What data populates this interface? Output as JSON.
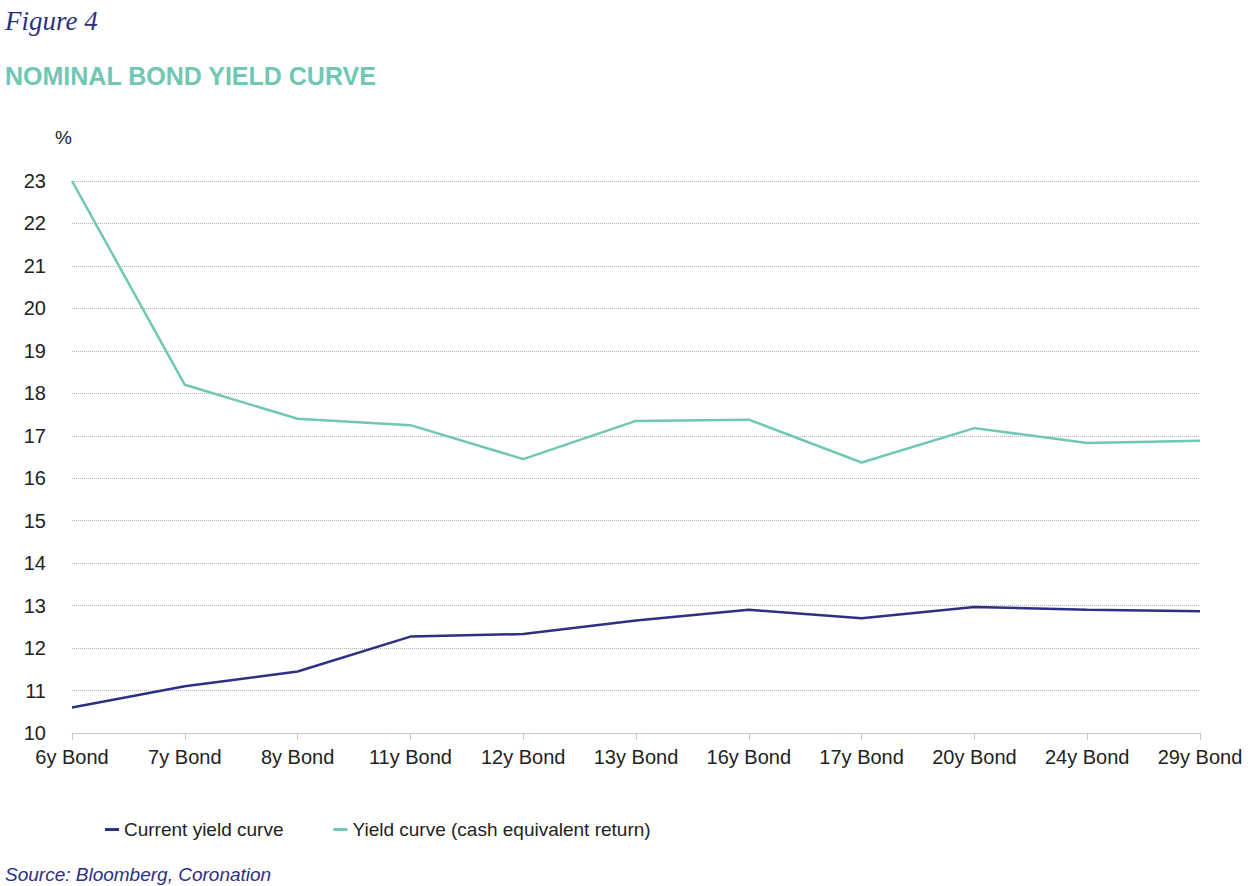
{
  "chart_data": {
    "type": "line",
    "subtitle": "Figure 4",
    "title": "NOMINAL BOND YIELD CURVE",
    "ylabel": "%",
    "annotations": [
      "Source: Bloomberg, Coronation"
    ],
    "categories": [
      "6y Bond",
      "7y Bond",
      "8y Bond",
      "11y Bond",
      "12y Bond",
      "13y Bond",
      "16y Bond",
      "17y Bond",
      "20y Bond",
      "24y Bond",
      "29y Bond"
    ],
    "series": [
      {
        "name": "Current yield curve",
        "color": "#2b3183",
        "values": [
          10.6,
          11.1,
          11.45,
          12.27,
          12.33,
          12.65,
          12.9,
          12.7,
          12.97,
          12.9,
          12.87
        ]
      },
      {
        "name": "Yield curve (cash equivalent return)",
        "color": "#70c7b4",
        "values": [
          23.0,
          18.2,
          17.4,
          17.25,
          16.45,
          17.35,
          17.38,
          16.37,
          17.18,
          16.83,
          16.88
        ]
      }
    ],
    "ylim": [
      10,
      23
    ],
    "yticks": [
      10,
      11,
      12,
      13,
      14,
      15,
      16,
      17,
      18,
      19,
      20,
      21,
      22,
      23
    ],
    "grid": true,
    "legend": "bottom-left"
  }
}
